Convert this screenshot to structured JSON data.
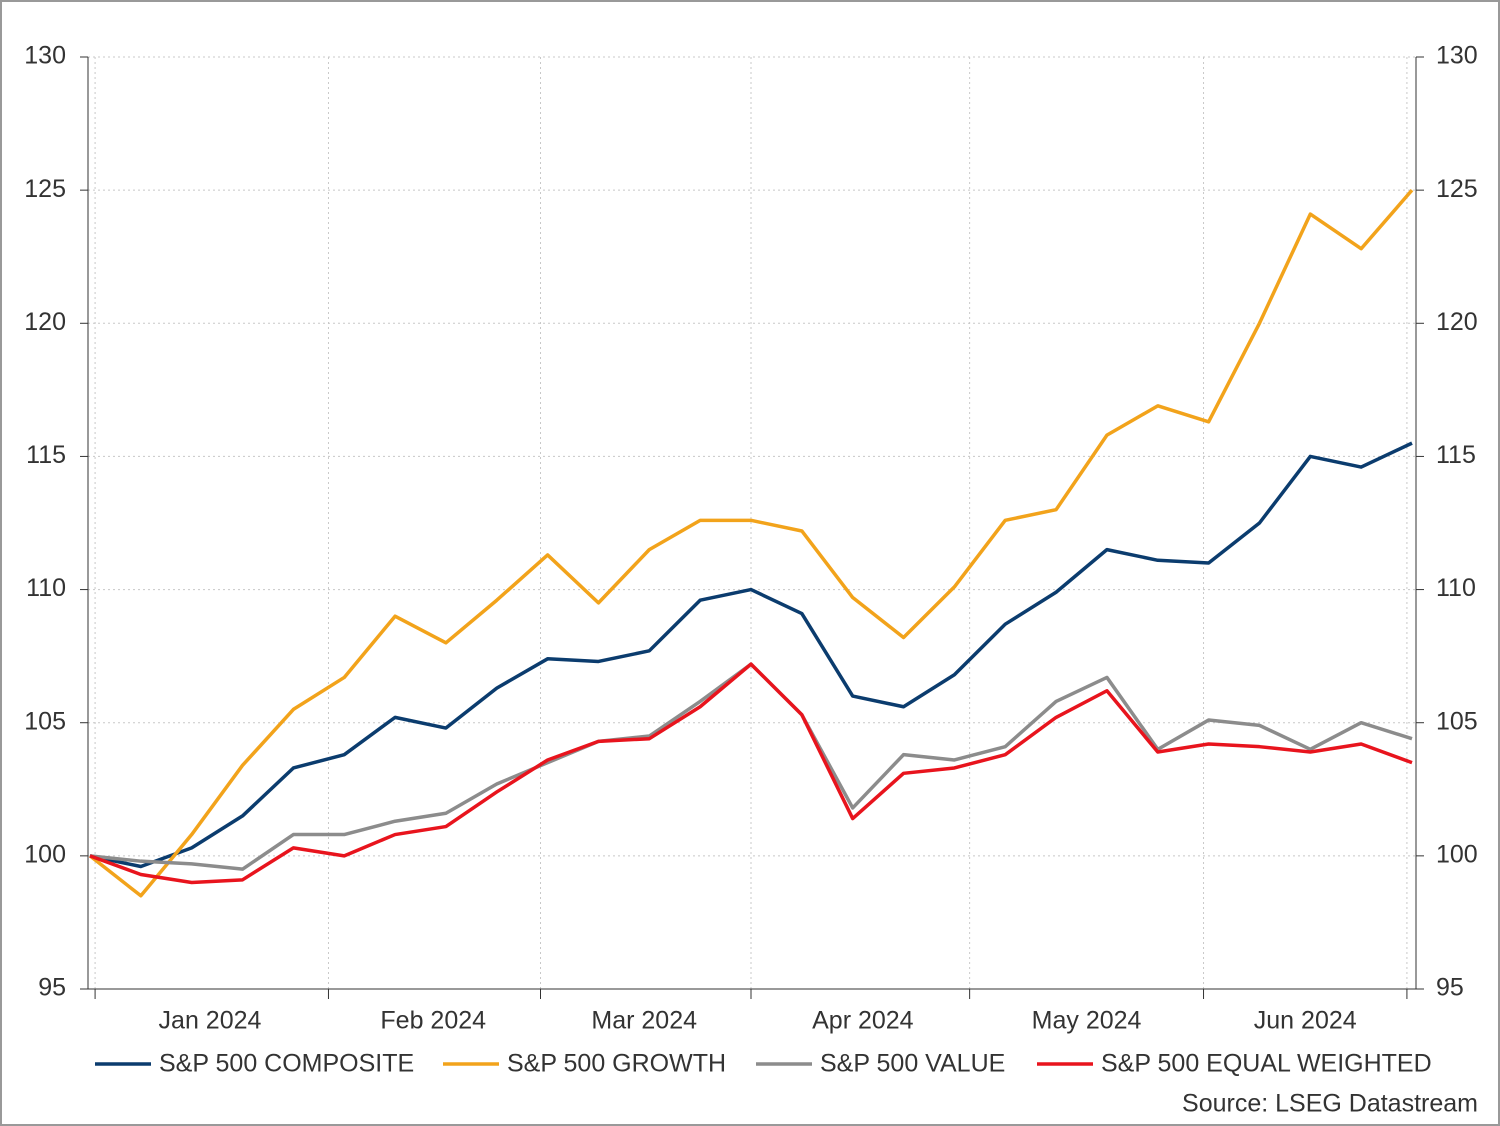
{
  "chart_data": {
    "type": "line",
    "x": [
      0,
      1,
      2,
      3,
      4,
      5,
      6,
      7,
      8,
      9,
      10,
      11,
      12,
      13,
      14,
      15,
      16,
      17,
      18,
      19,
      20,
      21,
      22,
      23,
      24,
      25,
      26
    ],
    "xlim": [
      0,
      26
    ],
    "xticks": [
      {
        "value": 2.36,
        "label": "Jan 2024"
      },
      {
        "value": 6.75,
        "label": "Feb 2024"
      },
      {
        "value": 10.9,
        "label": "Mar 2024"
      },
      {
        "value": 15.2,
        "label": "Apr 2024"
      },
      {
        "value": 19.6,
        "label": "May 2024"
      },
      {
        "value": 23.9,
        "label": "Jun 2024"
      }
    ],
    "xgrid": [
      0.1,
      4.69,
      8.86,
      13.0,
      17.3,
      21.9,
      25.9
    ],
    "ylim": [
      95,
      130
    ],
    "yticks": [
      95,
      100,
      105,
      110,
      115,
      120,
      125,
      130
    ],
    "grid": true,
    "series": [
      {
        "name": "S&P 500 COMPOSITE",
        "color": "#0b3c6e",
        "values": [
          100,
          99.6,
          100.3,
          101.5,
          103.3,
          103.8,
          105.2,
          104.8,
          106.3,
          107.4,
          107.3,
          107.7,
          109.6,
          110.0,
          109.1,
          106.0,
          105.6,
          106.8,
          108.7,
          109.9,
          111.5,
          111.1,
          111.0,
          112.5,
          115.0,
          114.6,
          115.5
        ]
      },
      {
        "name": "S&P 500 GROWTH",
        "color": "#f2a31b",
        "values": [
          100,
          98.5,
          100.8,
          103.4,
          105.5,
          106.7,
          109.0,
          108.0,
          109.6,
          111.3,
          109.5,
          111.5,
          112.6,
          112.6,
          112.2,
          109.7,
          108.2,
          110.1,
          112.6,
          113.0,
          115.8,
          116.9,
          116.3,
          120.0,
          124.1,
          122.8,
          125.0
        ]
      },
      {
        "name": "S&P 500 VALUE",
        "color": "#8c8c8c",
        "values": [
          100,
          99.8,
          99.7,
          99.5,
          100.8,
          100.8,
          101.3,
          101.6,
          102.7,
          103.5,
          104.3,
          104.5,
          105.8,
          107.2,
          105.3,
          101.8,
          103.8,
          103.6,
          104.1,
          105.8,
          106.7,
          104.0,
          105.1,
          104.9,
          104.0,
          105.0,
          104.4
        ]
      },
      {
        "name": "S&P 500 EQUAL WEIGHTED",
        "color": "#e8141d",
        "values": [
          100,
          99.3,
          99.0,
          99.1,
          100.3,
          100.0,
          100.8,
          101.1,
          102.4,
          103.6,
          104.3,
          104.4,
          105.6,
          107.2,
          105.3,
          101.4,
          103.1,
          103.3,
          103.8,
          105.2,
          106.2,
          103.9,
          104.2,
          104.1,
          103.9,
          104.2,
          103.5
        ]
      }
    ],
    "source": "Source: LSEG Datastream"
  }
}
